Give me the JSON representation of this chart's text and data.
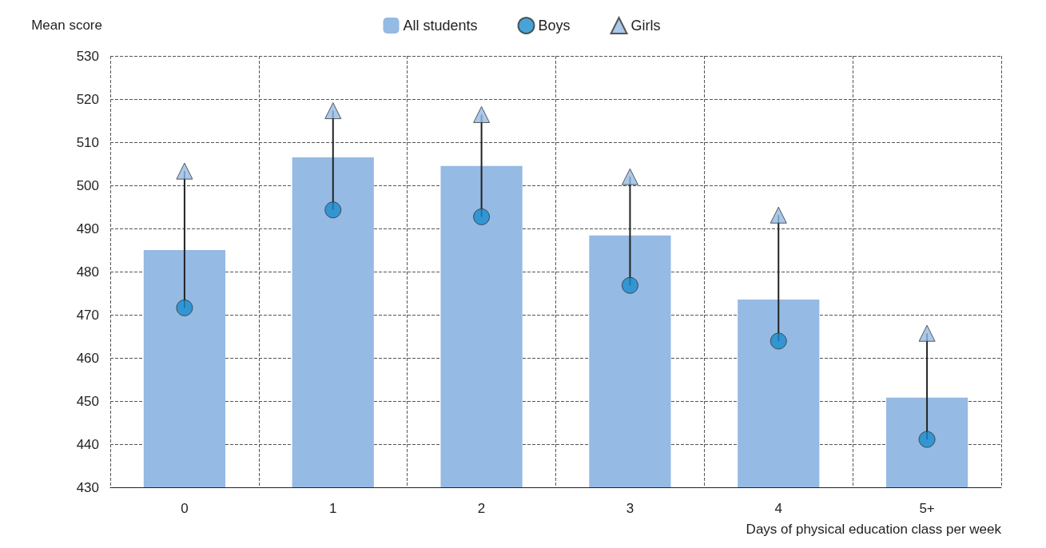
{
  "chart_data": {
    "type": "bar",
    "xlabel": "Days of physical education class per week",
    "ylabel": "Mean score",
    "categories": [
      "0",
      "1",
      "2",
      "3",
      "4",
      "5+"
    ],
    "series": [
      {
        "name": "All students",
        "color": "#95bae3",
        "values": [
          485,
          506.5,
          504.5,
          488.4,
          473.5,
          450.8
        ]
      },
      {
        "name": "Boys",
        "type": "scatter",
        "marker": "circle",
        "color": "#1a8ccc",
        "values": [
          471.6,
          494.3,
          492.7,
          476.8,
          463.9,
          441.1
        ]
      },
      {
        "name": "Girls",
        "type": "scatter",
        "marker": "triangle",
        "color": "#95bae3",
        "values": [
          503.3,
          517.3,
          516.4,
          502,
          493.1,
          465.7
        ]
      }
    ],
    "ylim": [
      430,
      530
    ],
    "yticks": [
      430,
      440,
      450,
      460,
      470,
      480,
      490,
      500,
      510,
      520,
      530
    ],
    "grid": true,
    "legend": "top"
  }
}
